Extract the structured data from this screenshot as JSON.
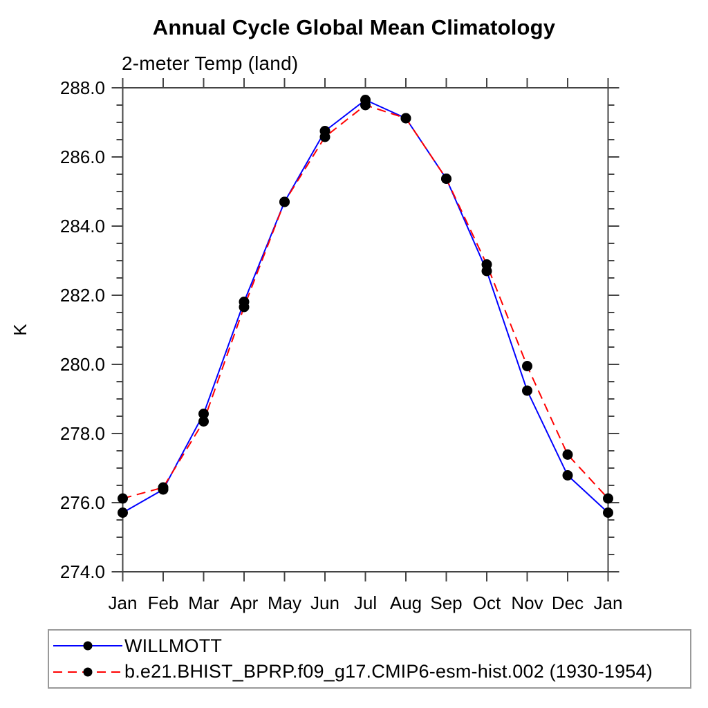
{
  "title": "Annual Cycle Global Mean Climatology",
  "subtitle": "2-meter Temp (land)",
  "chart_data": {
    "type": "line",
    "title": "Annual Cycle Global Mean Climatology",
    "subtitle": "2-meter Temp (land)",
    "xlabel": "",
    "ylabel": "K",
    "categories": [
      "Jan",
      "Feb",
      "Mar",
      "Apr",
      "May",
      "Jun",
      "Jul",
      "Aug",
      "Sep",
      "Oct",
      "Nov",
      "Dec",
      "Jan"
    ],
    "series": [
      {
        "name": "WILLMOTT",
        "color": "#0000ff",
        "style": "solid",
        "marker": "black-dot",
        "values": [
          275.71,
          276.38,
          278.57,
          281.81,
          284.7,
          286.75,
          287.65,
          287.12,
          285.37,
          282.7,
          279.24,
          276.79,
          275.71
        ]
      },
      {
        "name": "b.e21.BHIST_BPRP.f09_g17.CMIP6-esm-hist.002 (1930-1954)",
        "color": "#ff0000",
        "style": "dashed",
        "marker": "black-dot",
        "values": [
          276.12,
          276.44,
          278.35,
          281.66,
          284.7,
          286.58,
          287.5,
          287.12,
          285.37,
          282.89,
          279.95,
          277.39,
          276.12
        ]
      }
    ],
    "ylim": [
      274,
      288
    ],
    "y_major_step": 2,
    "y_minor_step": 0.5,
    "y_ticks": [
      {
        "value": 288,
        "label": "288.0"
      },
      {
        "value": 286,
        "label": "286.0"
      },
      {
        "value": 284,
        "label": "284.0"
      },
      {
        "value": 282,
        "label": "282.0"
      },
      {
        "value": 280,
        "label": "280.0"
      },
      {
        "value": 278,
        "label": "278.0"
      },
      {
        "value": 276,
        "label": "276.0"
      },
      {
        "value": 274,
        "label": "274.0"
      }
    ],
    "grid": false,
    "legend_position": "bottom-left",
    "axis_color": "#444444",
    "text_color": "#000000",
    "marker_color": "#000000"
  }
}
